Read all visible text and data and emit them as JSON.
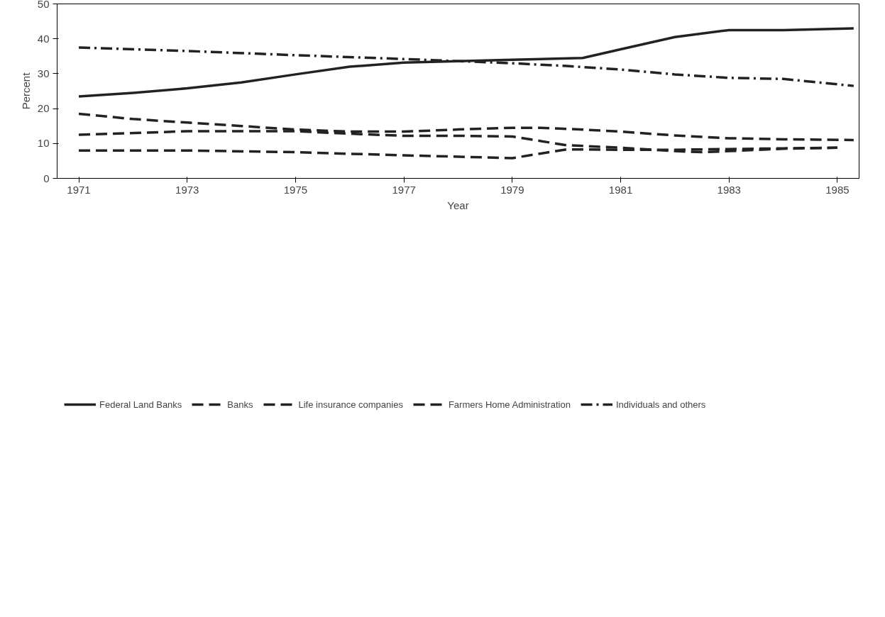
{
  "chart_data": {
    "type": "line",
    "xlabel": "Year",
    "ylabel": "Percent",
    "xlim": [
      1970.6,
      1985.4
    ],
    "ylim": [
      0,
      50
    ],
    "xticks": [
      1971,
      1973,
      1975,
      1977,
      1979,
      1981,
      1983,
      1985
    ],
    "yticks": [
      0,
      10,
      20,
      30,
      40,
      50
    ],
    "grid": false,
    "legend": "bottom",
    "marker": "none",
    "series": [
      {
        "name": "Federal Land Banks",
        "color": "#222222",
        "line_style": "solid",
        "x": [
          1971,
          1972,
          1973,
          1974,
          1975,
          1976,
          1977,
          1978,
          1979,
          1980.3,
          1981,
          1982,
          1983,
          1984,
          1985.3
        ],
        "values": [
          23.5,
          24.5,
          25.8,
          27.5,
          29.8,
          32,
          33.2,
          33.6,
          34,
          34.5,
          37,
          40.5,
          42.5,
          42.5,
          43
        ]
      },
      {
        "name": "Banks",
        "color": "#222222",
        "line_style": "dashed",
        "x": [
          1971,
          1973,
          1975,
          1976,
          1977,
          1978,
          1979,
          1980,
          1981,
          1982,
          1982.5,
          1983,
          1984,
          1985
        ],
        "values": [
          12.5,
          13.5,
          13.5,
          12.8,
          12.2,
          12.2,
          12,
          9.5,
          8.8,
          7.8,
          7.5,
          7.8,
          8.5,
          8.8
        ]
      },
      {
        "name": "Life insurance companies",
        "color": "#222222",
        "line_style": "dashed",
        "x": [
          1971,
          1972,
          1973,
          1974,
          1975,
          1976,
          1977,
          1978,
          1979,
          1979.5,
          1980,
          1981,
          1982,
          1983,
          1984,
          1985.3
        ],
        "values": [
          18.5,
          17,
          16,
          15,
          14,
          13.4,
          13.4,
          14,
          14.5,
          14.5,
          14.2,
          13.4,
          12.3,
          11.5,
          11.2,
          11
        ]
      },
      {
        "name": "Farmers Home Administration",
        "color": "#222222",
        "line_style": "dashed",
        "x": [
          1971,
          1973,
          1975,
          1977,
          1979,
          1980,
          1981,
          1982,
          1983,
          1984,
          1985
        ],
        "values": [
          8,
          8,
          7.5,
          6.6,
          5.8,
          8.3,
          8.2,
          8.2,
          8.4,
          8.6,
          8.8
        ]
      },
      {
        "name": "Individuals and others",
        "color": "#222222",
        "line_style": "dashdot",
        "x": [
          1971,
          1973,
          1975,
          1977,
          1978,
          1979,
          1980,
          1981,
          1982,
          1983,
          1984,
          1985.3
        ],
        "values": [
          37.5,
          36.5,
          35.3,
          34.2,
          33.6,
          33,
          32.2,
          31.2,
          29.8,
          28.8,
          28.5,
          26.5
        ]
      }
    ]
  }
}
